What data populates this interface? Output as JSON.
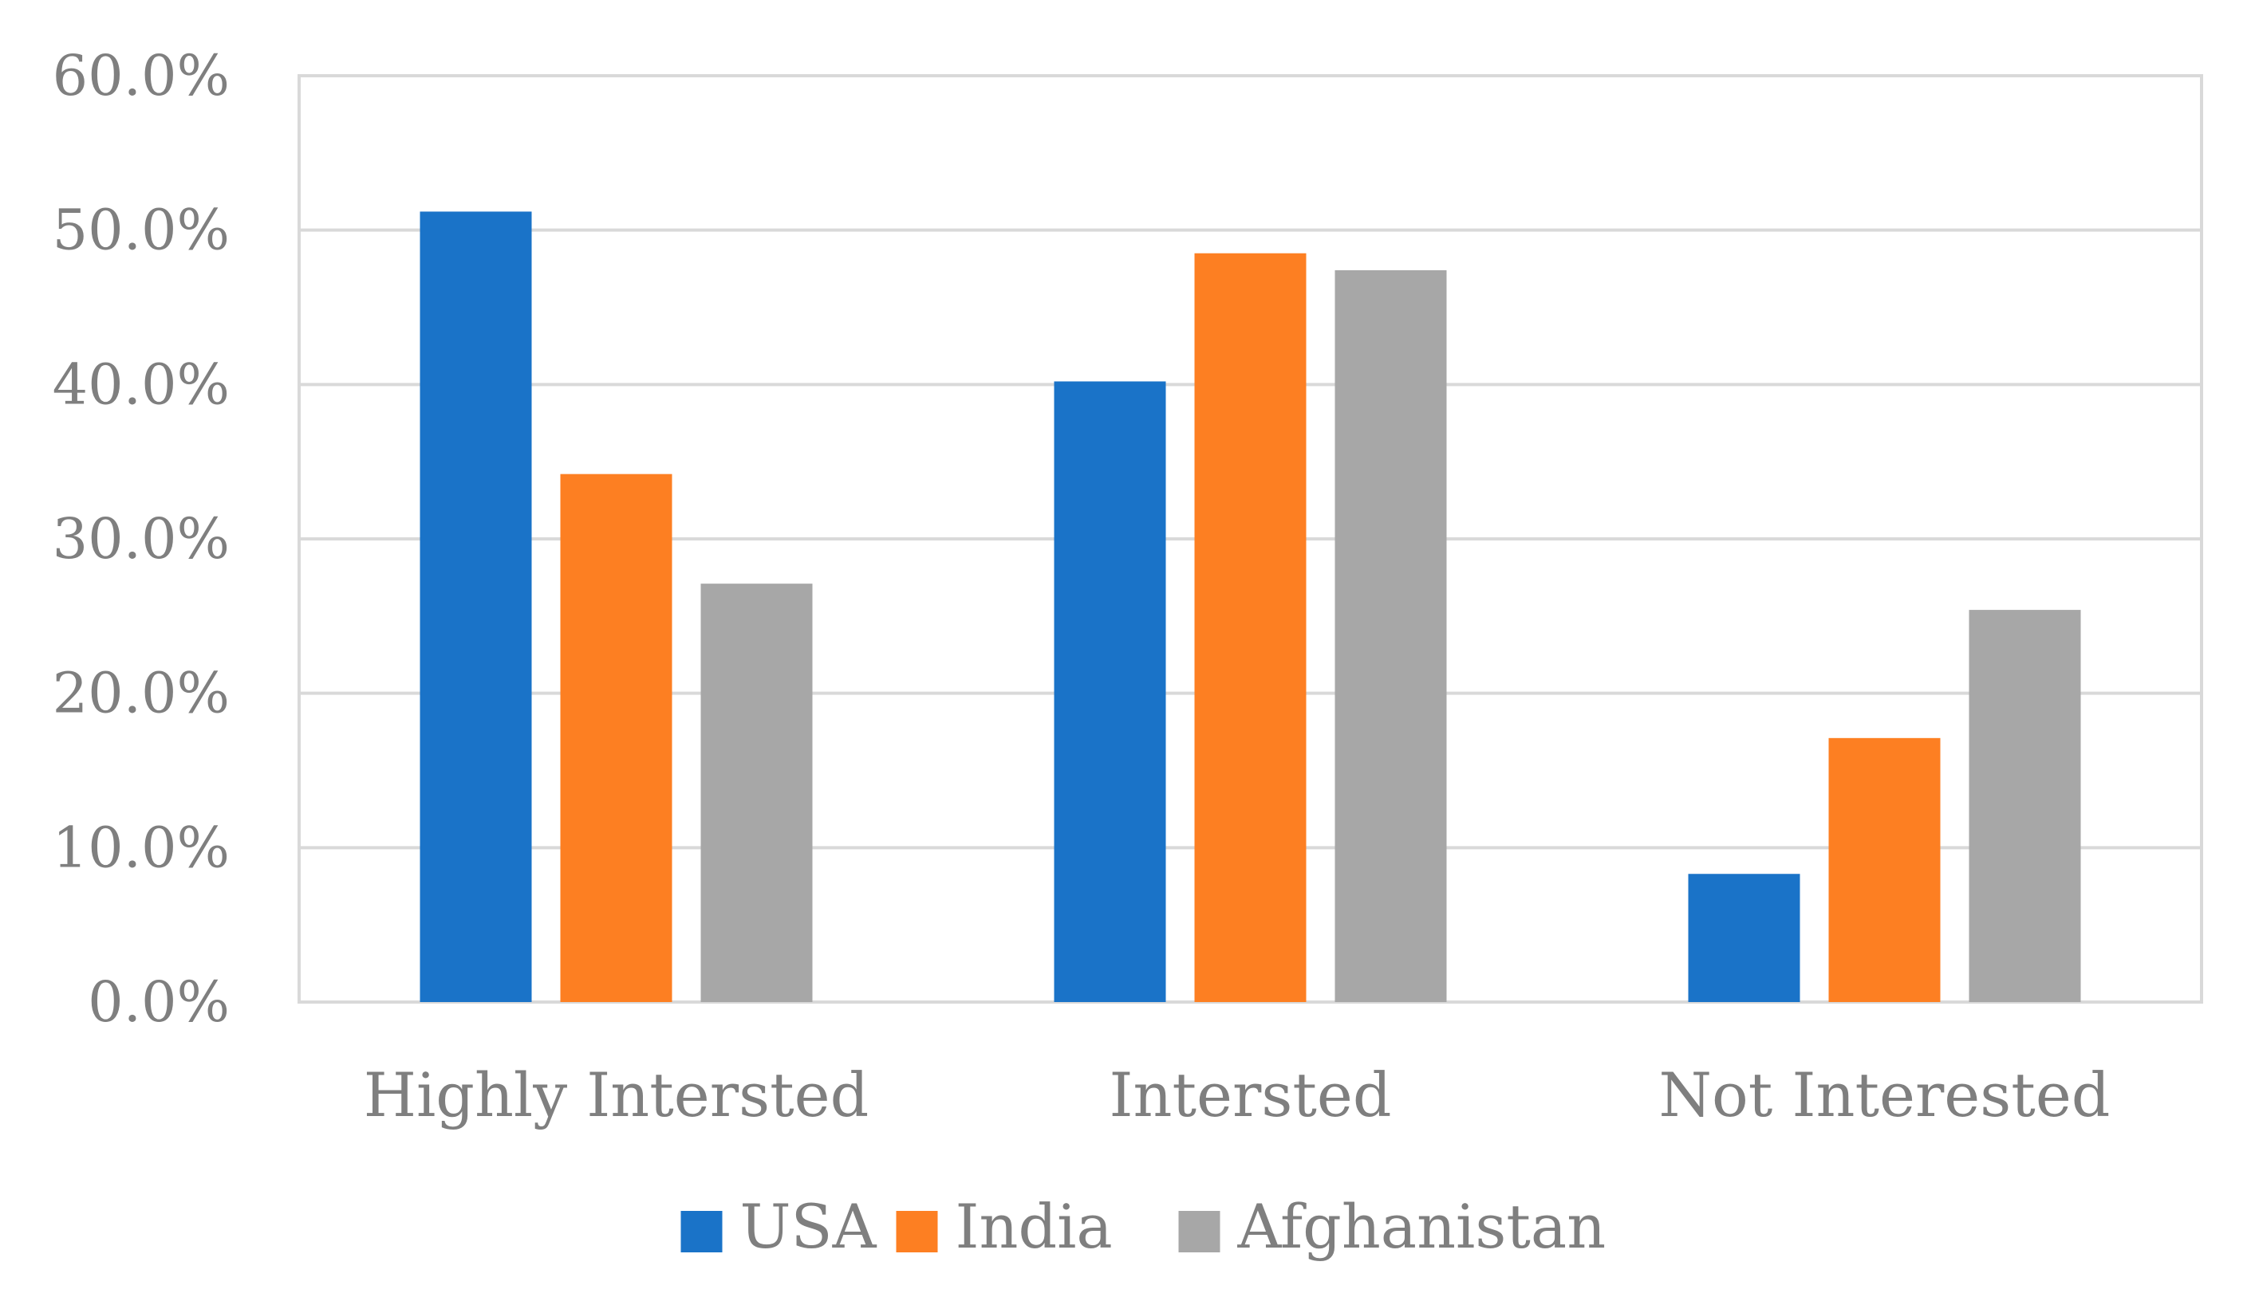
{
  "chart_data": {
    "type": "bar",
    "title": "",
    "xlabel": "",
    "ylabel": "",
    "ylim": [
      0,
      60
    ],
    "yticks": [
      "0.0%",
      "10.0%",
      "20.0%",
      "30.0%",
      "40.0%",
      "50.0%",
      "60.0%"
    ],
    "ytick_values": [
      0,
      10,
      20,
      30,
      40,
      50,
      60
    ],
    "grid": true,
    "legend_position": "bottom",
    "categories": [
      "Highly Intersted",
      "Intersted",
      "Not Interested"
    ],
    "series": [
      {
        "name": "USA",
        "color": "#1a73c8",
        "values": [
          51.2,
          40.2,
          8.3
        ]
      },
      {
        "name": "India",
        "color": "#fd7f22",
        "values": [
          34.2,
          48.5,
          17.1
        ]
      },
      {
        "name": "Afghanistan",
        "color": "#a7a7a7",
        "values": [
          27.1,
          47.4,
          25.4
        ]
      }
    ]
  }
}
